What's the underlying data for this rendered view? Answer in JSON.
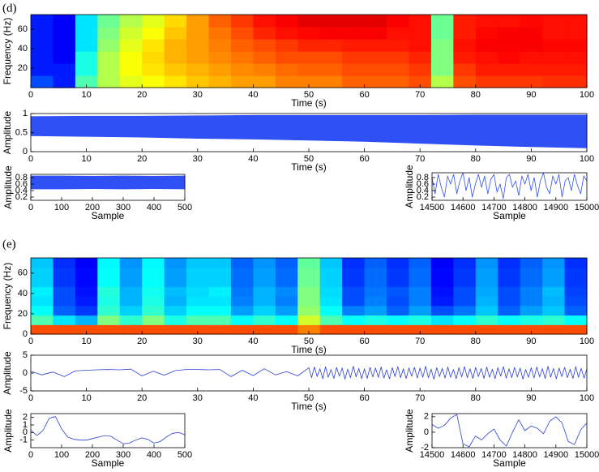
{
  "chart_data": [
    {
      "type": "heatmap",
      "panel_label": "(d)",
      "x_label": "Time (s)",
      "y_label": "Frequency (Hz)",
      "xlim": [
        0,
        100
      ],
      "ylim": [
        0,
        75
      ],
      "xticks": [
        0,
        10,
        20,
        30,
        40,
        50,
        60,
        70,
        80,
        90,
        100
      ],
      "yticks": [
        20,
        40,
        60
      ],
      "colormap": "jet",
      "values": [
        [
          0.2,
          0.15,
          0.45,
          0.55,
          0.6,
          0.62,
          0.65,
          0.68,
          0.7,
          0.72,
          0.72,
          0.75,
          0.75,
          0.75,
          0.78,
          0.78,
          0.78,
          0.8,
          0.55,
          0.8,
          0.82,
          0.82,
          0.82,
          0.83,
          0.83
        ],
        [
          0.15,
          0.15,
          0.4,
          0.55,
          0.62,
          0.65,
          0.68,
          0.7,
          0.72,
          0.74,
          0.75,
          0.77,
          0.78,
          0.78,
          0.8,
          0.8,
          0.8,
          0.82,
          0.5,
          0.82,
          0.85,
          0.85,
          0.85,
          0.85,
          0.85
        ],
        [
          0.15,
          0.12,
          0.4,
          0.55,
          0.62,
          0.66,
          0.7,
          0.72,
          0.74,
          0.76,
          0.78,
          0.8,
          0.8,
          0.8,
          0.82,
          0.82,
          0.82,
          0.84,
          0.5,
          0.85,
          0.86,
          0.87,
          0.86,
          0.86,
          0.86
        ],
        [
          0.15,
          0.12,
          0.35,
          0.52,
          0.6,
          0.65,
          0.7,
          0.72,
          0.75,
          0.78,
          0.8,
          0.82,
          0.84,
          0.84,
          0.85,
          0.85,
          0.85,
          0.86,
          0.5,
          0.86,
          0.88,
          0.88,
          0.88,
          0.87,
          0.87
        ],
        [
          0.15,
          0.12,
          0.35,
          0.5,
          0.58,
          0.62,
          0.68,
          0.72,
          0.76,
          0.8,
          0.84,
          0.86,
          0.87,
          0.88,
          0.88,
          0.88,
          0.86,
          0.86,
          0.48,
          0.85,
          0.87,
          0.88,
          0.88,
          0.86,
          0.86
        ],
        [
          0.15,
          0.12,
          0.35,
          0.48,
          0.55,
          0.6,
          0.66,
          0.72,
          0.78,
          0.82,
          0.86,
          0.88,
          0.9,
          0.9,
          0.9,
          0.9,
          0.88,
          0.86,
          0.48,
          0.85,
          0.86,
          0.86,
          0.87,
          0.86,
          0.86
        ]
      ]
    },
    {
      "type": "band",
      "x_label": "Time (s)",
      "y_label": "Amplitude",
      "color": "#2f50f5",
      "xlim": [
        0,
        100
      ],
      "ylim": [
        0,
        1
      ],
      "xticks": [
        0,
        10,
        20,
        30,
        40,
        50,
        60,
        70,
        80,
        90,
        100
      ],
      "yticks": [
        0,
        0.5,
        1
      ],
      "x": [
        0,
        10,
        20,
        30,
        40,
        50,
        60,
        70,
        80,
        90,
        100
      ],
      "lower": [
        0.42,
        0.4,
        0.38,
        0.35,
        0.33,
        0.3,
        0.27,
        0.22,
        0.17,
        0.13,
        0.1
      ],
      "upper": [
        0.92,
        0.93,
        0.93,
        0.94,
        0.95,
        0.95,
        0.95,
        0.95,
        0.96,
        0.96,
        0.96
      ]
    },
    {
      "type": "band",
      "x_label": "Sample",
      "y_label": "Amplitude",
      "color": "#2f50f5",
      "xlim": [
        0,
        500
      ],
      "ylim": [
        0.1,
        0.9
      ],
      "xticks": [
        0,
        100,
        200,
        300,
        400,
        500
      ],
      "yticks": [
        0.2,
        0.4,
        0.6,
        0.8
      ],
      "x": [
        0,
        100,
        200,
        300,
        400,
        500
      ],
      "lower": [
        0.45,
        0.45,
        0.46,
        0.45,
        0.46,
        0.45
      ],
      "upper": [
        0.85,
        0.85,
        0.84,
        0.85,
        0.84,
        0.85
      ]
    },
    {
      "type": "line",
      "x_label": "Sample",
      "y_label": "Amplitude",
      "color": "#2f50f5",
      "xlim": [
        14500,
        15000
      ],
      "ylim": [
        0.1,
        0.95
      ],
      "xticks": [
        14500,
        14600,
        14700,
        14800,
        14900,
        15000
      ],
      "yticks": [
        0.2,
        0.4,
        0.6,
        0.8
      ],
      "x": [
        14500,
        14510,
        14520,
        14530,
        14540,
        14550,
        14560,
        14570,
        14580,
        14590,
        14600,
        14610,
        14620,
        14630,
        14640,
        14650,
        14660,
        14670,
        14680,
        14690,
        14700,
        14710,
        14720,
        14730,
        14740,
        14750,
        14760,
        14770,
        14780,
        14790,
        14800,
        14810,
        14820,
        14830,
        14840,
        14850,
        14860,
        14870,
        14880,
        14890,
        14900,
        14910,
        14920,
        14930,
        14940,
        14950,
        14960,
        14970,
        14980,
        14990,
        15000
      ],
      "values": [
        0.8,
        0.3,
        0.9,
        0.5,
        0.2,
        0.85,
        0.6,
        0.9,
        0.3,
        0.7,
        0.95,
        0.4,
        0.8,
        0.2,
        0.6,
        0.9,
        0.5,
        0.85,
        0.3,
        0.75,
        0.9,
        0.35,
        0.6,
        0.15,
        0.8,
        0.9,
        0.5,
        0.7,
        0.25,
        0.85,
        0.6,
        0.9,
        0.4,
        0.8,
        0.2,
        0.7,
        0.95,
        0.5,
        0.3,
        0.85,
        0.6,
        0.9,
        0.2,
        0.7,
        0.8,
        0.4,
        0.9,
        0.55,
        0.3,
        0.85,
        0.7
      ]
    },
    {
      "type": "heatmap",
      "panel_label": "(e)",
      "x_label": "Time (s)",
      "y_label": "Frequency (Hz)",
      "xlim": [
        0,
        100
      ],
      "ylim": [
        0,
        75
      ],
      "xticks": [
        0,
        10,
        20,
        30,
        40,
        50,
        60,
        70,
        80,
        90,
        100
      ],
      "yticks": [
        0,
        20,
        40,
        60
      ],
      "colormap": "jet",
      "values": [
        [
          0.8,
          0.8,
          0.8,
          0.8,
          0.8,
          0.8,
          0.8,
          0.8,
          0.8,
          0.8,
          0.8,
          0.8,
          0.75,
          0.8,
          0.8,
          0.8,
          0.8,
          0.8,
          0.8,
          0.8,
          0.8,
          0.8,
          0.8,
          0.8,
          0.8
        ],
        [
          0.45,
          0.35,
          0.3,
          0.5,
          0.42,
          0.5,
          0.4,
          0.45,
          0.45,
          0.38,
          0.42,
          0.38,
          0.58,
          0.45,
          0.38,
          0.4,
          0.38,
          0.4,
          0.35,
          0.38,
          0.42,
          0.38,
          0.4,
          0.42,
          0.38
        ],
        [
          0.38,
          0.22,
          0.18,
          0.42,
          0.33,
          0.42,
          0.33,
          0.38,
          0.38,
          0.28,
          0.33,
          0.28,
          0.52,
          0.38,
          0.25,
          0.28,
          0.22,
          0.28,
          0.2,
          0.24,
          0.32,
          0.22,
          0.28,
          0.32,
          0.22
        ],
        [
          0.35,
          0.2,
          0.15,
          0.4,
          0.3,
          0.4,
          0.3,
          0.35,
          0.35,
          0.25,
          0.3,
          0.25,
          0.5,
          0.35,
          0.2,
          0.25,
          0.2,
          0.25,
          0.15,
          0.2,
          0.3,
          0.2,
          0.25,
          0.3,
          0.2
        ],
        [
          0.36,
          0.2,
          0.14,
          0.41,
          0.3,
          0.39,
          0.31,
          0.34,
          0.36,
          0.24,
          0.3,
          0.26,
          0.5,
          0.34,
          0.2,
          0.24,
          0.21,
          0.25,
          0.14,
          0.2,
          0.29,
          0.2,
          0.25,
          0.31,
          0.19
        ],
        [
          0.33,
          0.18,
          0.13,
          0.38,
          0.28,
          0.38,
          0.28,
          0.33,
          0.33,
          0.23,
          0.28,
          0.23,
          0.48,
          0.33,
          0.18,
          0.23,
          0.18,
          0.23,
          0.13,
          0.18,
          0.28,
          0.18,
          0.23,
          0.28,
          0.18
        ],
        [
          0.33,
          0.18,
          0.13,
          0.38,
          0.28,
          0.38,
          0.28,
          0.33,
          0.33,
          0.23,
          0.28,
          0.23,
          0.48,
          0.33,
          0.18,
          0.23,
          0.18,
          0.23,
          0.13,
          0.18,
          0.28,
          0.18,
          0.23,
          0.28,
          0.18
        ],
        [
          0.32,
          0.17,
          0.12,
          0.37,
          0.27,
          0.37,
          0.27,
          0.32,
          0.32,
          0.22,
          0.27,
          0.22,
          0.47,
          0.32,
          0.17,
          0.22,
          0.17,
          0.22,
          0.12,
          0.17,
          0.27,
          0.17,
          0.22,
          0.27,
          0.17
        ]
      ]
    },
    {
      "type": "line",
      "x_label": "Time (s)",
      "y_label": "Amplitude",
      "color": "#2a3fd6",
      "xlim": [
        0,
        100
      ],
      "ylim": [
        -5,
        5
      ],
      "xticks": [
        0,
        10,
        20,
        30,
        40,
        50,
        60,
        70,
        80,
        90,
        100
      ],
      "yticks": [
        -5,
        0,
        5
      ],
      "x": [
        0,
        2,
        4,
        6,
        8,
        10,
        12,
        14,
        16,
        18,
        20,
        22,
        24,
        26,
        28,
        30,
        32,
        34,
        36,
        38,
        40,
        42,
        44,
        46,
        48,
        50,
        50.5,
        51,
        51.5,
        52,
        52.5,
        53,
        53.5,
        54,
        54.5,
        55,
        55.5,
        56,
        56.5,
        57,
        57.5,
        58,
        58.5,
        59,
        59.5,
        60,
        60.5,
        61,
        61.5,
        62,
        62.5,
        63,
        63.5,
        64,
        64.5,
        65,
        65.5,
        66,
        66.5,
        67,
        67.5,
        68,
        68.5,
        69,
        69.5,
        70,
        70.5,
        71,
        71.5,
        72,
        72.5,
        73,
        73.5,
        74,
        74.5,
        75,
        75.5,
        76,
        76.5,
        77,
        77.5,
        78,
        78.5,
        79,
        79.5,
        80,
        80.5,
        81,
        81.5,
        82,
        82.5,
        83,
        83.5,
        84,
        84.5,
        85,
        85.5,
        86,
        86.5,
        87,
        87.5,
        88,
        88.5,
        89,
        89.5,
        90,
        90.5,
        91,
        91.5,
        92,
        92.5,
        93,
        93.5,
        94,
        94.5,
        95,
        95.5,
        96,
        96.5,
        97,
        97.5,
        98,
        98.5,
        99,
        99.5,
        100
      ],
      "values": [
        0.5,
        -0.5,
        0.3,
        -1.0,
        0.6,
        0.8,
        0.9,
        1.0,
        0.9,
        1.1,
        -0.8,
        0.5,
        -0.6,
        0.7,
        1.0,
        1.0,
        0.9,
        1.0,
        -1.0,
        0.8,
        -0.7,
        1.2,
        -0.5,
        0.4,
        -0.8,
        1.5,
        -1.3,
        1.7,
        -1.0,
        1.2,
        -1.6,
        1.8,
        -1.2,
        1.0,
        -1.5,
        1.6,
        -0.9,
        1.4,
        -1.7,
        1.1,
        -1.3,
        1.9,
        -1.1,
        1.3,
        -1.6,
        1.2,
        -1.5,
        1.6,
        -1.1,
        1.4,
        -1.2,
        1.7,
        -1.4,
        0.9,
        -1.6,
        1.5,
        -1.0,
        1.8,
        -1.3,
        1.2,
        -1.5,
        1.4,
        -0.9,
        1.6,
        -1.4,
        1.4,
        -1.2,
        1.9,
        -1.3,
        1.1,
        -1.7,
        1.5,
        -1.0,
        1.3,
        -1.4,
        1.7,
        -1.2,
        1.0,
        -1.6,
        1.5,
        -1.1,
        1.8,
        -1.3,
        1.2,
        -1.5,
        1.6,
        -1.0,
        1.3,
        -1.5,
        1.7,
        -1.2,
        1.1,
        -1.6,
        1.5,
        -0.9,
        1.8,
        -1.4,
        1.2,
        -1.3,
        1.6,
        -1.1,
        1.4,
        -1.7,
        1.0,
        -1.2,
        1.5,
        -1.4,
        1.7,
        -1.1,
        1.2,
        -1.5,
        1.9,
        -1.2,
        1.3,
        -1.6,
        1.4,
        -1.0,
        1.6,
        -1.3,
        1.1,
        -1.5,
        1.8,
        -1.2,
        1.3,
        -1.4,
        1.2
      ]
    },
    {
      "type": "line",
      "x_label": "Sample",
      "y_label": "Amplitude",
      "color": "#2a3fd6",
      "xlim": [
        0,
        500
      ],
      "ylim": [
        -2,
        2.5
      ],
      "xticks": [
        0,
        100,
        200,
        300,
        400,
        500
      ],
      "yticks": [
        -1,
        0,
        1,
        2
      ],
      "x": [
        0,
        20,
        40,
        60,
        80,
        100,
        120,
        140,
        160,
        180,
        200,
        220,
        240,
        260,
        280,
        300,
        320,
        340,
        360,
        380,
        400,
        420,
        440,
        460,
        480,
        500
      ],
      "values": [
        0.3,
        -0.4,
        0.3,
        1.9,
        2.1,
        0.5,
        -0.6,
        -0.9,
        -1.0,
        -1.0,
        -0.8,
        -0.6,
        -0.4,
        -0.5,
        -1.0,
        -1.5,
        -1.4,
        -1.0,
        -0.7,
        -0.9,
        -1.4,
        -1.2,
        -0.6,
        -0.1,
        0.0,
        -0.3
      ]
    },
    {
      "type": "line",
      "x_label": "Sample",
      "y_label": "Amplitude",
      "color": "#2a3fd6",
      "xlim": [
        14500,
        15000
      ],
      "ylim": [
        -2,
        2.4
      ],
      "xticks": [
        14500,
        14600,
        14700,
        14800,
        14900,
        15000
      ],
      "yticks": [
        -2,
        0,
        2
      ],
      "x": [
        14500,
        14520,
        14540,
        14560,
        14580,
        14600,
        14620,
        14640,
        14660,
        14680,
        14700,
        14720,
        14740,
        14760,
        14780,
        14800,
        14820,
        14840,
        14860,
        14880,
        14900,
        14920,
        14940,
        14960,
        14980,
        15000
      ],
      "values": [
        1.0,
        0.5,
        0.9,
        1.8,
        2.3,
        -1.5,
        -1.9,
        -0.5,
        -1.0,
        -0.2,
        0.4,
        -1.0,
        -1.8,
        0.0,
        1.6,
        0.2,
        0.8,
        0.5,
        -0.2,
        1.4,
        2.0,
        1.2,
        -1.2,
        -1.6,
        0.3,
        1.2
      ]
    }
  ]
}
